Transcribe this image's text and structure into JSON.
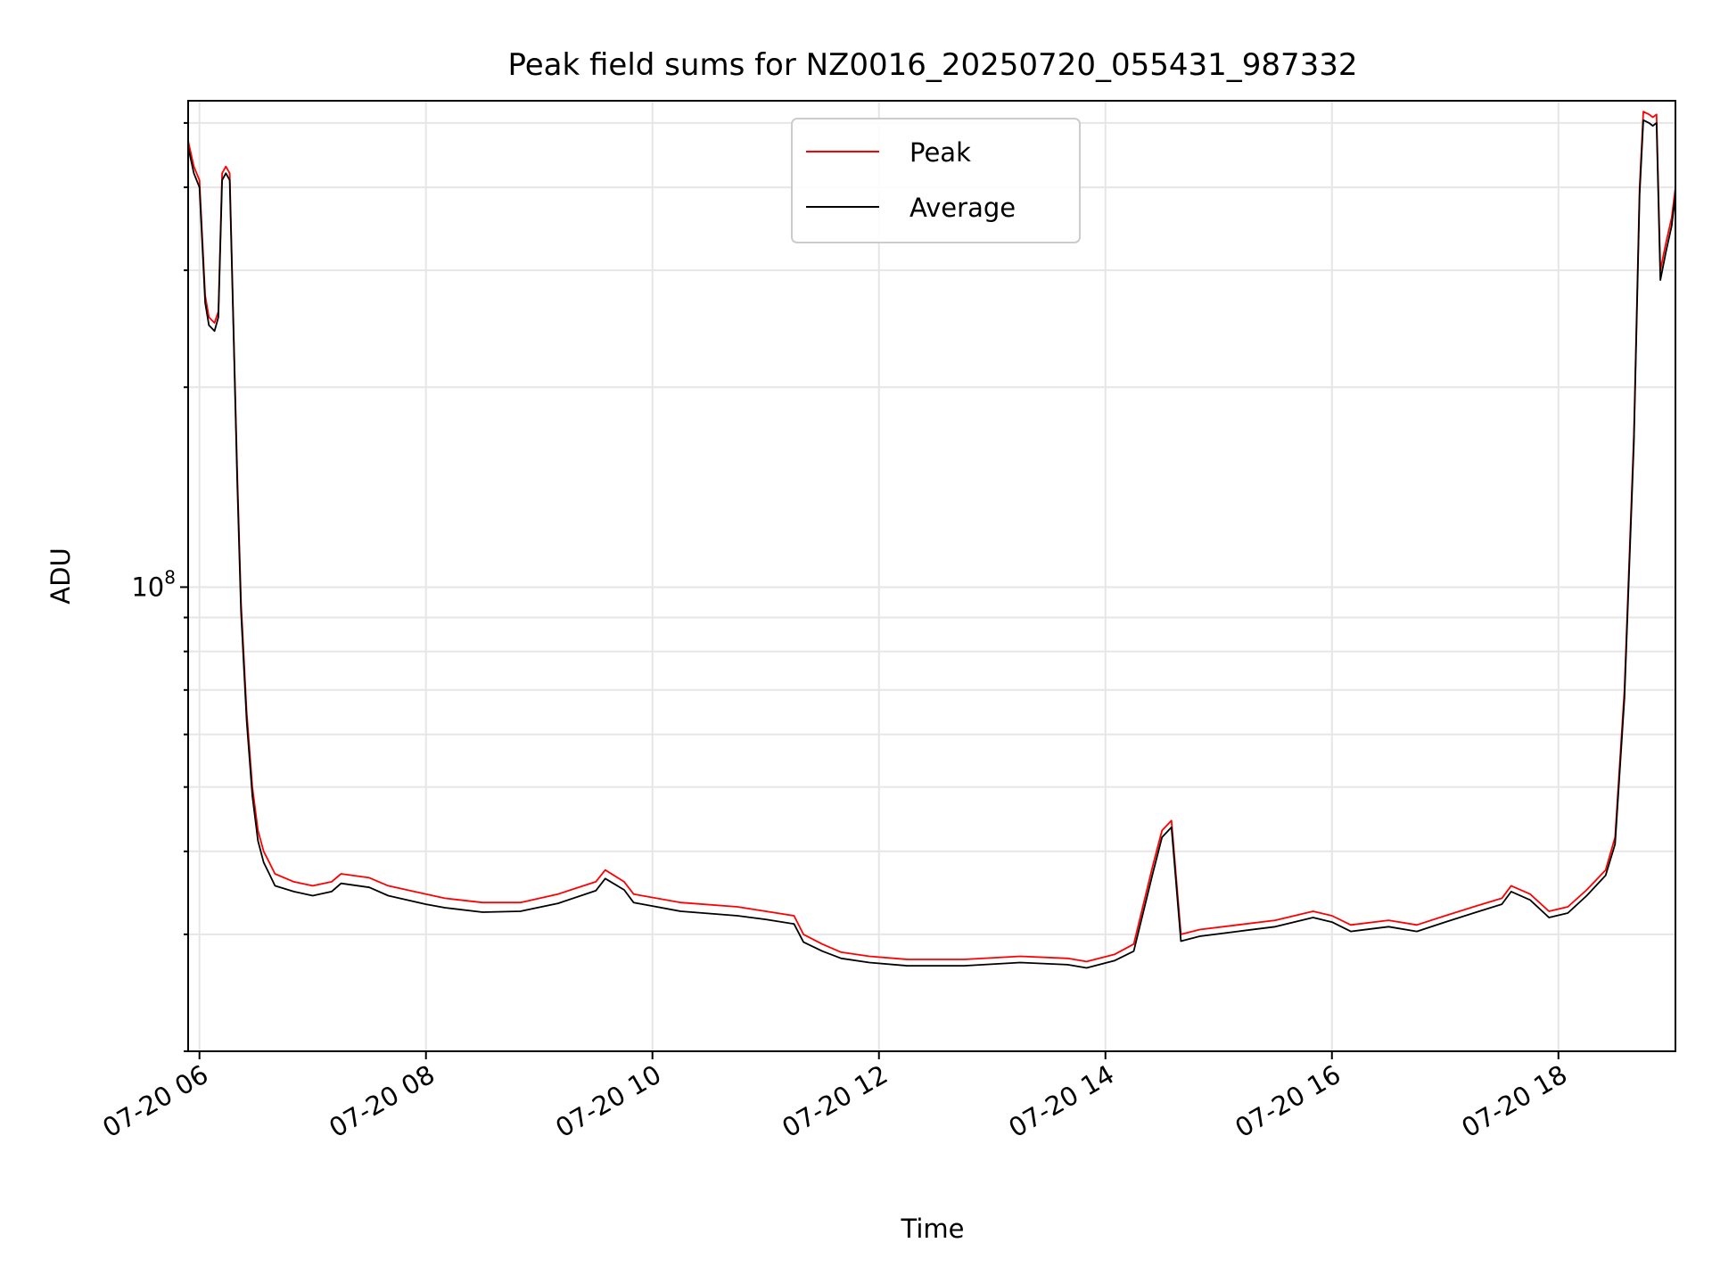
{
  "chart_data": {
    "type": "line",
    "title": "Peak field sums for NZ0016_20250720_055431_987332",
    "xlabel": "Time",
    "ylabel": "ADU",
    "y_scale": "log",
    "grid": true,
    "legend_position": "top-center",
    "xlim": [
      "07-20 05:54",
      "07-20 19:02"
    ],
    "ylim": [
      20000000,
      540000000
    ],
    "x_ticks": [
      "07-20 06",
      "07-20 08",
      "07-20 10",
      "07-20 12",
      "07-20 14",
      "07-20 16",
      "07-20 18"
    ],
    "y_tick_label": {
      "base": "10",
      "exponent": "8",
      "value": 100000000
    },
    "colors": {
      "Peak": "#ff0000",
      "Average": "#000000",
      "grid": "#e6e6e6"
    },
    "series": [
      {
        "name": "Peak",
        "x": [
          "07-20 05:54",
          "07-20 05:57",
          "07-20 06:00",
          "07-20 06:03",
          "07-20 06:05",
          "07-20 06:08",
          "07-20 06:10",
          "07-20 06:12",
          "07-20 06:14",
          "07-20 06:16",
          "07-20 06:18",
          "07-20 06:20",
          "07-20 06:22",
          "07-20 06:25",
          "07-20 06:28",
          "07-20 06:31",
          "07-20 06:34",
          "07-20 06:37",
          "07-20 06:40",
          "07-20 06:50",
          "07-20 07:00",
          "07-20 07:10",
          "07-20 07:15",
          "07-20 07:30",
          "07-20 07:40",
          "07-20 08:00",
          "07-20 08:10",
          "07-20 08:30",
          "07-20 08:50",
          "07-20 09:10",
          "07-20 09:30",
          "07-20 09:35",
          "07-20 09:45",
          "07-20 09:50",
          "07-20 10:15",
          "07-20 10:45",
          "07-20 11:00",
          "07-20 11:15",
          "07-20 11:20",
          "07-20 11:30",
          "07-20 11:40",
          "07-20 11:55",
          "07-20 12:15",
          "07-20 12:45",
          "07-20 13:15",
          "07-20 13:40",
          "07-20 13:50",
          "07-20 14:05",
          "07-20 14:15",
          "07-20 14:25",
          "07-20 14:30",
          "07-20 14:35",
          "07-20 14:40",
          "07-20 14:50",
          "07-20 15:10",
          "07-20 15:30",
          "07-20 15:50",
          "07-20 16:00",
          "07-20 16:10",
          "07-20 16:30",
          "07-20 16:45",
          "07-20 17:00",
          "07-20 17:15",
          "07-20 17:30",
          "07-20 17:35",
          "07-20 17:45",
          "07-20 17:55",
          "07-20 18:05",
          "07-20 18:15",
          "07-20 18:25",
          "07-20 18:30",
          "07-20 18:35",
          "07-20 18:40",
          "07-20 18:43",
          "07-20 18:45",
          "07-20 18:48",
          "07-20 18:50",
          "07-20 18:52",
          "07-20 18:54",
          "07-20 18:57",
          "07-20 19:00",
          "07-20 19:02"
        ],
        "y": [
          470000000,
          430000000,
          410000000,
          275000000,
          255000000,
          250000000,
          260000000,
          420000000,
          430000000,
          420000000,
          250000000,
          150000000,
          95000000,
          65000000,
          50000000,
          43000000,
          40000000,
          38500000,
          37000000,
          36000000,
          35500000,
          36000000,
          37000000,
          36500000,
          35500000,
          34500000,
          34000000,
          33500000,
          33500000,
          34500000,
          36000000,
          37500000,
          36000000,
          34500000,
          33500000,
          33000000,
          32500000,
          32000000,
          30000000,
          29000000,
          28200000,
          27800000,
          27500000,
          27500000,
          27800000,
          27600000,
          27300000,
          28000000,
          29000000,
          38000000,
          43000000,
          44500000,
          30000000,
          30500000,
          31000000,
          31500000,
          32500000,
          32000000,
          31000000,
          31500000,
          31000000,
          32000000,
          33000000,
          34000000,
          35500000,
          34500000,
          32500000,
          33000000,
          35000000,
          37500000,
          42000000,
          70000000,
          170000000,
          400000000,
          520000000,
          515000000,
          510000000,
          515000000,
          300000000,
          330000000,
          360000000,
          400000000
        ]
      },
      {
        "name": "Average",
        "x": [
          "07-20 05:54",
          "07-20 05:57",
          "07-20 06:00",
          "07-20 06:03",
          "07-20 06:05",
          "07-20 06:08",
          "07-20 06:10",
          "07-20 06:12",
          "07-20 06:14",
          "07-20 06:16",
          "07-20 06:18",
          "07-20 06:20",
          "07-20 06:22",
          "07-20 06:25",
          "07-20 06:28",
          "07-20 06:31",
          "07-20 06:34",
          "07-20 06:37",
          "07-20 06:40",
          "07-20 06:50",
          "07-20 07:00",
          "07-20 07:10",
          "07-20 07:15",
          "07-20 07:30",
          "07-20 07:40",
          "07-20 08:00",
          "07-20 08:10",
          "07-20 08:30",
          "07-20 08:50",
          "07-20 09:10",
          "07-20 09:30",
          "07-20 09:35",
          "07-20 09:45",
          "07-20 09:50",
          "07-20 10:15",
          "07-20 10:45",
          "07-20 11:00",
          "07-20 11:15",
          "07-20 11:20",
          "07-20 11:30",
          "07-20 11:40",
          "07-20 11:55",
          "07-20 12:15",
          "07-20 12:45",
          "07-20 13:15",
          "07-20 13:40",
          "07-20 13:50",
          "07-20 14:05",
          "07-20 14:15",
          "07-20 14:25",
          "07-20 14:30",
          "07-20 14:35",
          "07-20 14:40",
          "07-20 14:50",
          "07-20 15:10",
          "07-20 15:30",
          "07-20 15:50",
          "07-20 16:00",
          "07-20 16:10",
          "07-20 16:30",
          "07-20 16:45",
          "07-20 17:00",
          "07-20 17:15",
          "07-20 17:30",
          "07-20 17:35",
          "07-20 17:45",
          "07-20 17:55",
          "07-20 18:05",
          "07-20 18:15",
          "07-20 18:25",
          "07-20 18:30",
          "07-20 18:35",
          "07-20 18:40",
          "07-20 18:43",
          "07-20 18:45",
          "07-20 18:48",
          "07-20 18:50",
          "07-20 18:52",
          "07-20 18:54",
          "07-20 18:57",
          "07-20 19:00",
          "07-20 19:02"
        ],
        "y": [
          460000000,
          420000000,
          400000000,
          268000000,
          248000000,
          243000000,
          255000000,
          410000000,
          420000000,
          410000000,
          245000000,
          145000000,
          92000000,
          63000000,
          48500000,
          41500000,
          38500000,
          37000000,
          35500000,
          34800000,
          34300000,
          34800000,
          35800000,
          35300000,
          34300000,
          33300000,
          32900000,
          32400000,
          32500000,
          33400000,
          34900000,
          36400000,
          35000000,
          33500000,
          32500000,
          32000000,
          31600000,
          31100000,
          29200000,
          28300000,
          27600000,
          27200000,
          26900000,
          26900000,
          27200000,
          27000000,
          26700000,
          27400000,
          28300000,
          37000000,
          42000000,
          43500000,
          29300000,
          29800000,
          30300000,
          30800000,
          31800000,
          31300000,
          30300000,
          30800000,
          30300000,
          31300000,
          32300000,
          33300000,
          34800000,
          33800000,
          31800000,
          32300000,
          34300000,
          36800000,
          41000000,
          68000000,
          165000000,
          390000000,
          505000000,
          500000000,
          495000000,
          500000000,
          290000000,
          320000000,
          350000000,
          390000000
        ]
      }
    ]
  }
}
